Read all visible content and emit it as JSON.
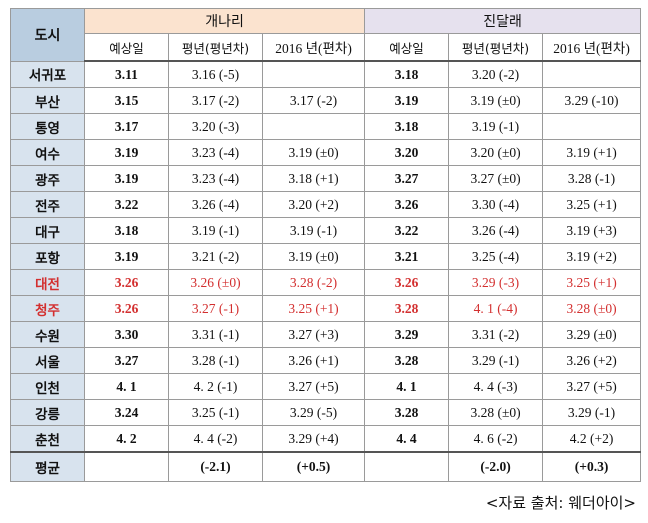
{
  "header": {
    "city_label": "도시",
    "group1": "개나리",
    "group2": "진달래",
    "sub": [
      "예상일",
      "평년(평년차)",
      "2016 년(편차)",
      "예상일",
      "평년(평년차)",
      "2016 년(편차)"
    ]
  },
  "rows": [
    {
      "city": "서귀포",
      "cells": [
        "3.11",
        "3.16 (-5)",
        "",
        "3.18",
        "3.20 (-2)",
        ""
      ]
    },
    {
      "city": "부산",
      "cells": [
        "3.15",
        "3.17 (-2)",
        "3.17 (-2)",
        "3.19",
        "3.19 (±0)",
        "3.29 (-10)"
      ]
    },
    {
      "city": "통영",
      "cells": [
        "3.17",
        "3.20 (-3)",
        "",
        "3.18",
        "3.19 (-1)",
        ""
      ]
    },
    {
      "city": "여수",
      "cells": [
        "3.19",
        "3.23 (-4)",
        "3.19 (±0)",
        "3.20",
        "3.20 (±0)",
        "3.19 (+1)"
      ]
    },
    {
      "city": "광주",
      "cells": [
        "3.19",
        "3.23 (-4)",
        "3.18 (+1)",
        "3.27",
        "3.27 (±0)",
        "3.28 (-1)"
      ]
    },
    {
      "city": "전주",
      "cells": [
        "3.22",
        "3.26 (-4)",
        "3.20 (+2)",
        "3.26",
        "3.30 (-4)",
        "3.25 (+1)"
      ]
    },
    {
      "city": "대구",
      "cells": [
        "3.18",
        "3.19 (-1)",
        "3.19 (-1)",
        "3.22",
        "3.26 (-4)",
        "3.19 (+3)"
      ]
    },
    {
      "city": "포항",
      "cells": [
        "3.19",
        "3.21 (-2)",
        "3.19 (±0)",
        "3.21",
        "3.25 (-4)",
        "3.19 (+2)"
      ]
    },
    {
      "city": "대전",
      "cells": [
        "3.26",
        "3.26 (±0)",
        "3.28 (-2)",
        "3.26",
        "3.29 (-3)",
        "3.25 (+1)"
      ],
      "highlight": true
    },
    {
      "city": "청주",
      "cells": [
        "3.26",
        "3.27 (-1)",
        "3.25 (+1)",
        "3.28",
        "4. 1 (-4)",
        "3.28 (±0)"
      ],
      "highlight": true
    },
    {
      "city": "수원",
      "cells": [
        "3.30",
        "3.31 (-1)",
        "3.27 (+3)",
        "3.29",
        "3.31 (-2)",
        "3.29 (±0)"
      ]
    },
    {
      "city": "서울",
      "cells": [
        "3.27",
        "3.28 (-1)",
        "3.26 (+1)",
        "3.28",
        "3.29 (-1)",
        "3.26 (+2)"
      ]
    },
    {
      "city": "인천",
      "cells": [
        "4. 1",
        "4. 2 (-1)",
        "3.27 (+5)",
        "4. 1",
        "4. 4 (-3)",
        "3.27 (+5)"
      ]
    },
    {
      "city": "강릉",
      "cells": [
        "3.24",
        "3.25 (-1)",
        "3.29 (-5)",
        "3.28",
        "3.28 (±0)",
        "3.29 (-1)"
      ]
    },
    {
      "city": "춘천",
      "cells": [
        "4. 2",
        "4. 4 (-2)",
        "3.29 (+4)",
        "4. 4",
        "4. 6 (-2)",
        "4.2 (+2)"
      ]
    }
  ],
  "average": {
    "city": "평균",
    "cells": [
      "",
      "(-2.1)",
      "(+0.5)",
      "",
      "(-2.0)",
      "(+0.3)"
    ]
  },
  "source": "<자료 출처: 웨더아이>",
  "colors": {
    "highlight": "#d32f2f",
    "city_bg": "#d8e3ee",
    "group1_bg": "#fbe3cf",
    "group2_bg": "#e6e1ee"
  }
}
